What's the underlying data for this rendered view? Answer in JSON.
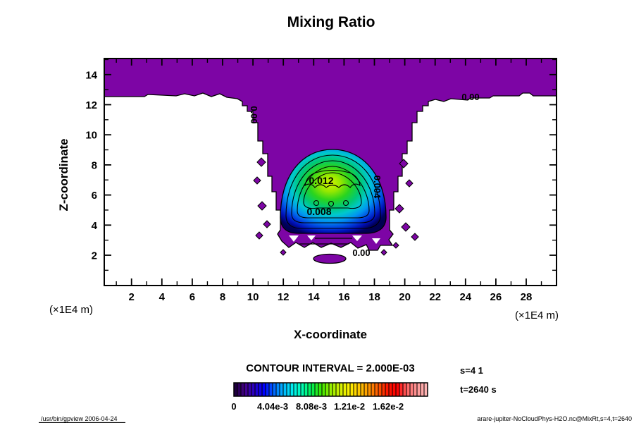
{
  "title": "Mixing Ratio",
  "axes": {
    "x": {
      "label": "X-coordinate",
      "unit": "(×1E4 m)",
      "major_ticks": [
        2,
        4,
        6,
        8,
        10,
        12,
        14,
        16,
        18,
        20,
        22,
        24,
        26,
        28
      ],
      "range": [
        0.2,
        30.0
      ]
    },
    "y": {
      "label": "Z-coordinate",
      "major_ticks": [
        2,
        4,
        6,
        8,
        10,
        12,
        14
      ],
      "range": [
        0.1,
        15.0
      ]
    }
  },
  "colorbar": {
    "title": "CONTOUR INTERVAL = 2.000E-03",
    "tick_labels": [
      "0",
      "4.04e-3",
      "8.08e-3",
      "1.21e-2",
      "1.62e-2"
    ]
  },
  "annotations": {
    "s_label": "s=4 1",
    "t_label": "t=2640 s"
  },
  "contour_labels": {
    "zero": "0.00",
    "c004": "0.004",
    "c008": "0.008",
    "c012": "0.012"
  },
  "footer": {
    "left": "/usr/bin/gpview 2006-04-24",
    "right": "arare-jupiter-NoCloudPhys-H2O.nc@MixRt,s=4,t=2640"
  },
  "colors": {
    "background": "#ffffff",
    "frame": "#000000",
    "contour_line": "#000000",
    "zero_fill_purple": "#7d05a5",
    "dome_gradient": [
      [
        "0.00",
        "#d4f400"
      ],
      [
        "0.15",
        "#96e800"
      ],
      [
        "0.30",
        "#2ad41e"
      ],
      [
        "0.44",
        "#00c875"
      ],
      [
        "0.56",
        "#00c8cd"
      ],
      [
        "0.67",
        "#0096f0"
      ],
      [
        "0.78",
        "#0046e1"
      ],
      [
        "0.87",
        "#000fb4"
      ],
      [
        "0.95",
        "#00005f"
      ],
      [
        "1.00",
        "#000050"
      ]
    ],
    "colorbar_stops": [
      "#200040",
      "#46008c",
      "#2800c8",
      "#0000ff",
      "#0064ff",
      "#00b4ff",
      "#00f0f0",
      "#00ffb4",
      "#00f050",
      "#3ce800",
      "#96f000",
      "#d2f000",
      "#fff000",
      "#ffc800",
      "#ff9600",
      "#ff5a00",
      "#ff1400",
      "#ff0000",
      "#ff6464",
      "#ff9696",
      "#ffb4b4"
    ]
  },
  "chart_data": {
    "type": "contour",
    "title": "Mixing Ratio",
    "xlabel": "X-coordinate",
    "ylabel": "Z-coordinate",
    "axis_unit": "(×1E4 m)",
    "xlim": [
      0.2,
      30.0
    ],
    "ylim": [
      0.1,
      15.0
    ],
    "x_major_ticks": [
      2,
      4,
      6,
      8,
      10,
      12,
      14,
      16,
      18,
      20,
      22,
      24,
      26,
      28
    ],
    "y_major_ticks": [
      2,
      4,
      6,
      8,
      10,
      12,
      14
    ],
    "contour_interval": 0.002,
    "levels": [
      0,
      0.002,
      0.004,
      0.006,
      0.008,
      0.01,
      0.012
    ],
    "colorbar_range": [
      0,
      0.0202
    ],
    "colorbar_tick_values": [
      0,
      0.00404,
      0.00808,
      0.0121,
      0.0162
    ],
    "annotations": {
      "slice": "s=4 1",
      "time": "t=2640 s"
    },
    "features": [
      {
        "name": "upper-zero-layer",
        "desc": "near-zero mixing ratio (purple, 0–0.002) band filling z≈12.5–15 across the full x domain"
      },
      {
        "name": "central-funnel",
        "desc": "purple near-zero region extends downward between x≈9.5 and x≈20.5, narrowing toward the plume, with ragged 0.00 contour edges and scattered fragments down to z≈1.5"
      },
      {
        "name": "plume-core",
        "desc": "dome-shaped maximum centered near x≈15, z≈6 spanning x≈11.5–18.5, z≈3.5–9; concentric contours 0.002–0.012 with peak just above 0.012 (yellow-green core)"
      },
      {
        "name": "zero-contour-labels",
        "positions_x_z": [
          [
            9.7,
            11.3
          ],
          [
            24.3,
            12.4
          ],
          [
            17.0,
            2.2
          ]
        ]
      },
      {
        "name": "labeled-contours",
        "values_x_z": [
          [
            0.012,
            14.5,
            6.8
          ],
          [
            0.008,
            14.3,
            4.8
          ],
          [
            0.004,
            17.9,
            6.4
          ]
        ]
      }
    ]
  }
}
